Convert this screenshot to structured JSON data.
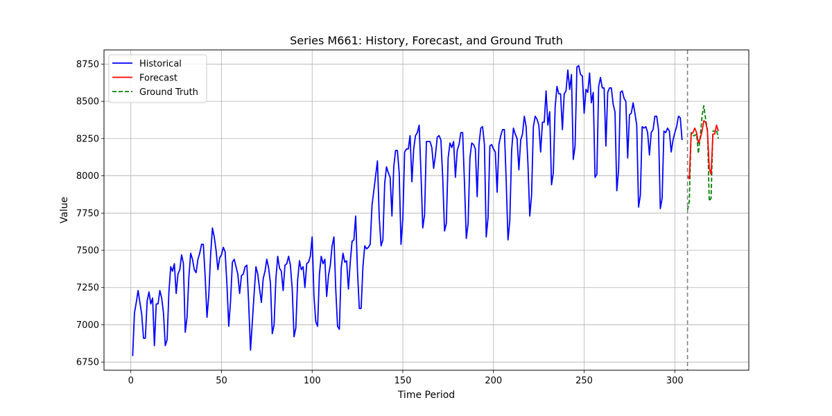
{
  "chart_data": {
    "type": "line",
    "title": "Series M661: History, Forecast, and Ground Truth",
    "xlabel": "Time Period",
    "ylabel": "Value",
    "xlim": [
      -14.8,
      340.8
    ],
    "ylim": [
      6695,
      8845
    ],
    "xticks": [
      0,
      50,
      100,
      150,
      200,
      250,
      300
    ],
    "yticks": [
      6750,
      7000,
      7250,
      7500,
      7750,
      8000,
      8250,
      8500,
      8750
    ],
    "grid": true,
    "legend_position": "top-left",
    "forecast_start_marker": 307,
    "series": [
      {
        "name": "Historical",
        "color": "#0000ff",
        "style": "solid",
        "x_start": 1,
        "values": [
          6790,
          7080,
          7150,
          7230,
          7150,
          7070,
          6910,
          6910,
          7160,
          7220,
          7140,
          7180,
          6860,
          7140,
          7140,
          7230,
          7180,
          7080,
          6860,
          6900,
          7220,
          7390,
          7360,
          7410,
          7210,
          7340,
          7370,
          7470,
          7410,
          6950,
          7050,
          7320,
          7480,
          7440,
          7370,
          7350,
          7440,
          7480,
          7540,
          7540,
          7320,
          7050,
          7200,
          7470,
          7650,
          7590,
          7500,
          7370,
          7450,
          7470,
          7520,
          7490,
          7270,
          6990,
          7160,
          7420,
          7440,
          7390,
          7340,
          7210,
          7330,
          7340,
          7390,
          7400,
          7140,
          6830,
          7020,
          7210,
          7390,
          7340,
          7240,
          7150,
          7310,
          7360,
          7440,
          7380,
          7280,
          6940,
          7000,
          7310,
          7460,
          7380,
          7360,
          7230,
          7400,
          7410,
          7460,
          7400,
          7240,
          6920,
          6980,
          7300,
          7430,
          7370,
          7390,
          7250,
          7410,
          7420,
          7460,
          7590,
          7190,
          7020,
          6990,
          7340,
          7460,
          7410,
          7440,
          7190,
          7330,
          7400,
          7530,
          7590,
          7240,
          6990,
          6970,
          7380,
          7480,
          7420,
          7430,
          7240,
          7420,
          7560,
          7570,
          7730,
          7360,
          7110,
          7110,
          7390,
          7530,
          7510,
          7520,
          7540,
          7800,
          7900,
          8000,
          8100,
          7720,
          7530,
          7570,
          7950,
          8060,
          8020,
          7990,
          7730,
          8060,
          8170,
          8170,
          8020,
          7540,
          7710,
          8160,
          8180,
          8180,
          8270,
          7960,
          8180,
          8270,
          8290,
          8340,
          8020,
          7650,
          7740,
          8230,
          8230,
          8230,
          8190,
          8050,
          8140,
          8260,
          8270,
          8240,
          7990,
          7630,
          7680,
          8120,
          8220,
          8190,
          8230,
          7990,
          8170,
          8210,
          8290,
          8290,
          7950,
          7580,
          7680,
          8120,
          8220,
          8210,
          8180,
          7860,
          8210,
          8320,
          8330,
          8210,
          7590,
          7720,
          8200,
          8210,
          8180,
          8160,
          7890,
          8210,
          8270,
          8310,
          8310,
          7970,
          7570,
          7700,
          8170,
          8320,
          8280,
          8250,
          8040,
          8240,
          8280,
          8400,
          8330,
          8080,
          7730,
          7870,
          8330,
          8400,
          8380,
          8340,
          8160,
          8360,
          8360,
          8570,
          8340,
          8430,
          7940,
          8020,
          8460,
          8600,
          8550,
          8550,
          8310,
          8550,
          8570,
          8710,
          8580,
          8680,
          8110,
          8200,
          8730,
          8740,
          8680,
          8670,
          8420,
          8580,
          8560,
          8690,
          8490,
          8560,
          7990,
          8010,
          8600,
          8660,
          8590,
          8590,
          8200,
          8560,
          8590,
          8590,
          8480,
          8430,
          7900,
          8040,
          8560,
          8570,
          8520,
          8500,
          8120,
          8410,
          8420,
          8490,
          8420,
          8340,
          7790,
          7870,
          8330,
          8320,
          8330,
          8290,
          8140,
          8290,
          8310,
          8400,
          8400,
          8310,
          7780,
          7850,
          8300,
          8290,
          8320,
          8300,
          8160,
          8240,
          8290,
          8330,
          8400,
          8390,
          8240
        ]
      },
      {
        "name": "Forecast",
        "color": "#ff0000",
        "style": "solid",
        "x_start": 307,
        "values": [
          8000,
          7980,
          8280,
          8290,
          8320,
          8290,
          8220,
          8250,
          8300,
          8370,
          8360,
          8300,
          8050,
          8010,
          8280,
          8280,
          8340,
          8300
        ]
      },
      {
        "name": "Ground Truth",
        "color": "#008000",
        "style": "dashed",
        "x_start": 307,
        "values": [
          7770,
          7830,
          8290,
          8270,
          8270,
          8280,
          8150,
          8260,
          8400,
          8470,
          8380,
          8310,
          7830,
          7850,
          8300,
          8300,
          8310,
          8250
        ]
      }
    ]
  }
}
